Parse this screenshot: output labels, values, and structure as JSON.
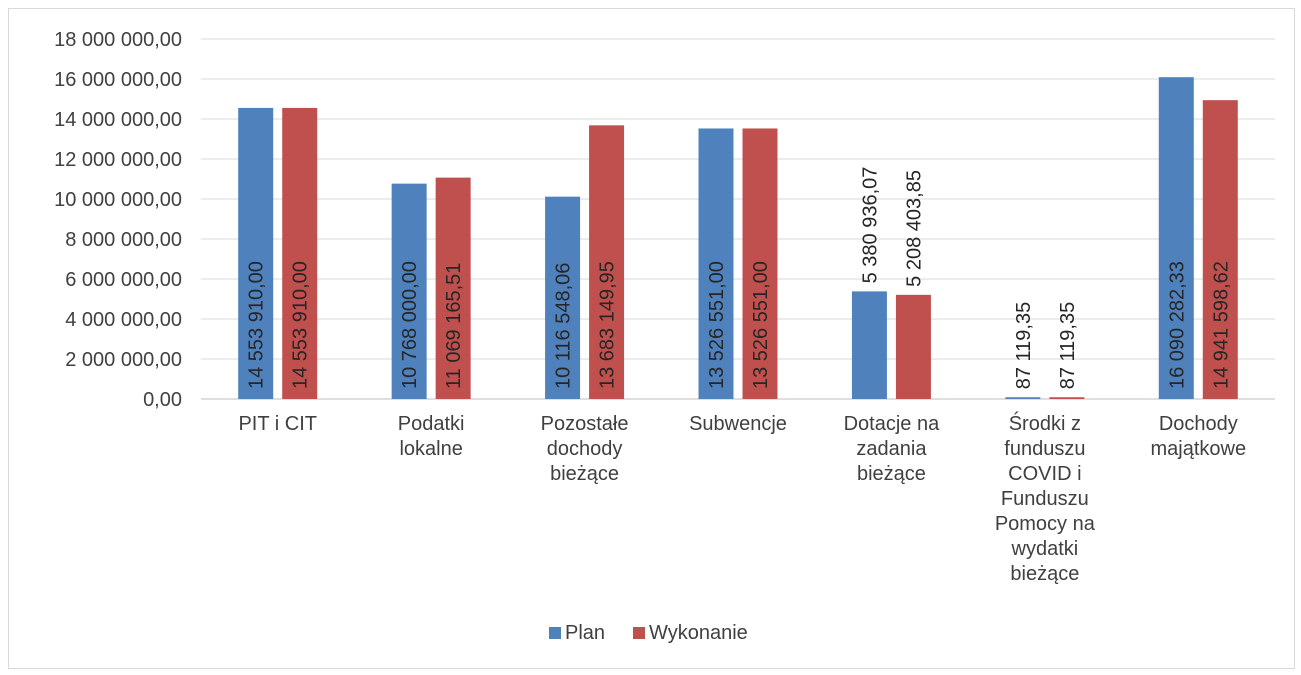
{
  "chart_data": {
    "type": "bar",
    "categories": [
      [
        "PIT i CIT"
      ],
      [
        "Podatki",
        "lokalne"
      ],
      [
        "Pozostałe",
        "dochody",
        "bieżące"
      ],
      [
        "Subwencje"
      ],
      [
        "Dotacje na",
        "zadania",
        "bieżące"
      ],
      [
        "Środki z",
        "funduszu",
        "COVID i",
        "Funduszu",
        "Pomocy na",
        "wydatki",
        "bieżące"
      ],
      [
        "Dochody",
        "majątkowe"
      ]
    ],
    "series": [
      {
        "name": "Plan",
        "color": "#4f81bd",
        "values": [
          14553910.0,
          10768000.0,
          10116548.06,
          13526551.0,
          5380936.07,
          87119.35,
          16090282.33
        ],
        "labels": [
          "14 553 910,00",
          "10 768 000,00",
          "10 116 548,06",
          "13 526 551,00",
          "5 380 936,07",
          "87 119,35",
          "16 090 282,33"
        ]
      },
      {
        "name": "Wykonanie",
        "color": "#c0504d",
        "values": [
          14553910.0,
          11069165.51,
          13683149.95,
          13526551.0,
          5208403.85,
          87119.35,
          14941598.62
        ],
        "labels": [
          "14 553 910,00",
          "11 069 165,51",
          "13 683 149,95",
          "13 526 551,00",
          "5 208 403,85",
          "87 119,35",
          "14 941 598,62"
        ]
      }
    ],
    "yticks": [
      0,
      2000000,
      4000000,
      6000000,
      8000000,
      10000000,
      12000000,
      14000000,
      16000000,
      18000000
    ],
    "ytick_labels": [
      "0,00",
      "2 000 000,00",
      "4 000 000,00",
      "6 000 000,00",
      "8 000 000,00",
      "10 000 000,00",
      "12 000 000,00",
      "14 000 000,00",
      "16 000 000,00",
      "18 000 000,00"
    ],
    "ylim": [
      0,
      18000000
    ],
    "grid": true,
    "legend_position": "bottom",
    "title": "",
    "xlabel": "",
    "ylabel": ""
  }
}
